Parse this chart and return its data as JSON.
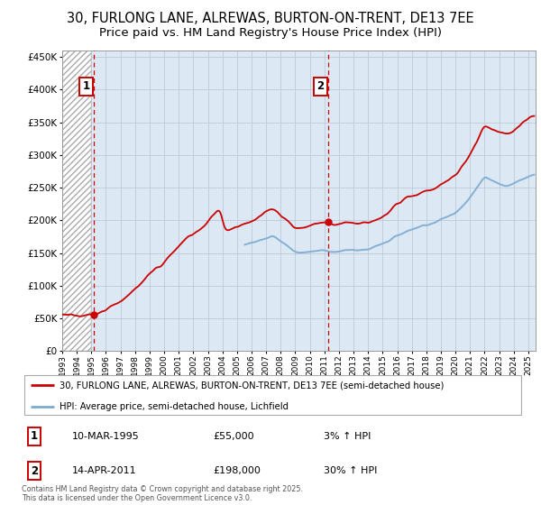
{
  "title_line1": "30, FURLONG LANE, ALREWAS, BURTON-ON-TRENT, DE13 7EE",
  "title_line2": "Price paid vs. HM Land Registry's House Price Index (HPI)",
  "legend_line1": "30, FURLONG LANE, ALREWAS, BURTON-ON-TRENT, DE13 7EE (semi-detached house)",
  "legend_line2": "HPI: Average price, semi-detached house, Lichfield",
  "footnote": "Contains HM Land Registry data © Crown copyright and database right 2025.\nThis data is licensed under the Open Government Licence v3.0.",
  "annotation1_date": "10-MAR-1995",
  "annotation1_price": "£55,000",
  "annotation1_hpi": "3% ↑ HPI",
  "annotation2_date": "14-APR-2011",
  "annotation2_price": "£198,000",
  "annotation2_hpi": "30% ↑ HPI",
  "sale1_x": 1995.19,
  "sale1_y": 55000,
  "sale2_x": 2011.28,
  "sale2_y": 198000,
  "ylim": [
    0,
    460000
  ],
  "xlim_left": 1993.0,
  "xlim_right": 2025.5,
  "bg_color": "#dce9f5",
  "red_color": "#cc0000",
  "blue_color": "#7aaad0",
  "grid_color": "#c0c8d8",
  "title_fontsize": 10.5,
  "subtitle_fontsize": 9.5,
  "hatch_end": 1995.0,
  "blue_start": 2005.5
}
